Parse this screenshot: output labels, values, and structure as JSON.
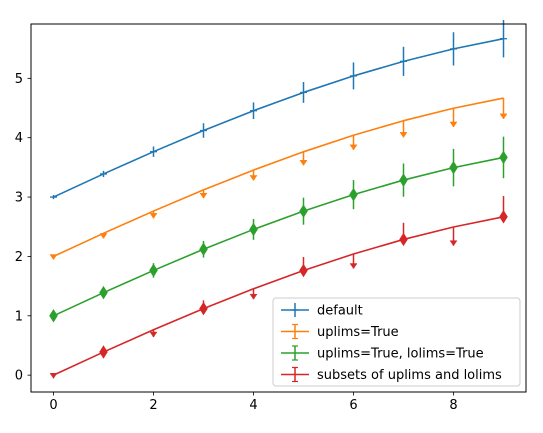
{
  "chart_data": {
    "type": "line",
    "title": "",
    "xlabel": "",
    "ylabel": "",
    "xlim": [
      -0.45,
      9.45
    ],
    "ylim": [
      -0.2838,
      5.9154
    ],
    "grid": false,
    "legend_placement": "lower-right",
    "x": [
      0,
      1,
      2,
      3,
      4,
      5,
      6,
      7,
      8,
      9
    ],
    "x_ticks": [
      0,
      2,
      4,
      6,
      8
    ],
    "x_tick_labels": [
      "0",
      "2",
      "4",
      "6",
      "8"
    ],
    "y_ticks": [
      0,
      1,
      2,
      3,
      4,
      5
    ],
    "y_tick_labels": [
      "0",
      "1",
      "2",
      "3",
      "4",
      "5"
    ],
    "series": [
      {
        "name": "default",
        "color": "#1f77b4",
        "marker": "plus",
        "values": [
          3.0,
          3.3894,
          3.7642,
          4.1207,
          4.4546,
          4.7624,
          5.0408,
          5.2862,
          5.496,
          5.6677
        ],
        "y_errors": [
          0.035,
          0.0525,
          0.0875,
          0.1225,
          0.14,
          0.175,
          0.2275,
          0.245,
          0.28,
          0.315
        ],
        "uplims": [
          false,
          false,
          false,
          false,
          false,
          false,
          false,
          false,
          false,
          false
        ],
        "lolims": [
          false,
          false,
          false,
          false,
          false,
          false,
          false,
          false,
          false,
          false
        ]
      },
      {
        "name": "uplims=True",
        "color": "#ff7f0e",
        "marker": "cap",
        "values": [
          2.0,
          2.3894,
          2.7642,
          3.1207,
          3.4546,
          3.7624,
          4.0408,
          4.2862,
          4.496,
          4.6677
        ],
        "y_errors": [
          0.0525,
          0.0875,
          0.1225,
          0.14,
          0.175,
          0.2275,
          0.245,
          0.28,
          0.315,
          0.35
        ],
        "uplims": [
          true,
          true,
          true,
          true,
          true,
          true,
          true,
          true,
          true,
          true
        ],
        "lolims": [
          false,
          false,
          false,
          false,
          false,
          false,
          false,
          false,
          false,
          false
        ]
      },
      {
        "name": "uplims=True, lolims=True",
        "color": "#2ca02c",
        "marker": "cap",
        "values": [
          1.0,
          1.3894,
          1.7642,
          2.1207,
          2.4546,
          2.7624,
          3.0408,
          3.2862,
          3.496,
          3.6677
        ],
        "y_errors": [
          0.0525,
          0.0875,
          0.1225,
          0.14,
          0.175,
          0.2275,
          0.245,
          0.28,
          0.315,
          0.35
        ],
        "uplims": [
          true,
          true,
          true,
          true,
          true,
          true,
          true,
          true,
          true,
          true
        ],
        "lolims": [
          true,
          true,
          true,
          true,
          true,
          true,
          true,
          true,
          true,
          true
        ]
      },
      {
        "name": "subsets of uplims and lolims",
        "color": "#d62728",
        "marker": "cap",
        "values": [
          0.0,
          0.3894,
          0.7642,
          1.1207,
          1.4546,
          1.7624,
          2.0408,
          2.2862,
          2.496,
          2.6677
        ],
        "y_errors": [
          0.0525,
          0.0875,
          0.1225,
          0.14,
          0.175,
          0.2275,
          0.245,
          0.28,
          0.315,
          0.35
        ],
        "uplims": [
          true,
          true,
          true,
          false,
          true,
          false,
          true,
          false,
          true,
          false
        ],
        "lolims": [
          false,
          true,
          false,
          true,
          false,
          true,
          false,
          true,
          false,
          true
        ]
      }
    ]
  }
}
